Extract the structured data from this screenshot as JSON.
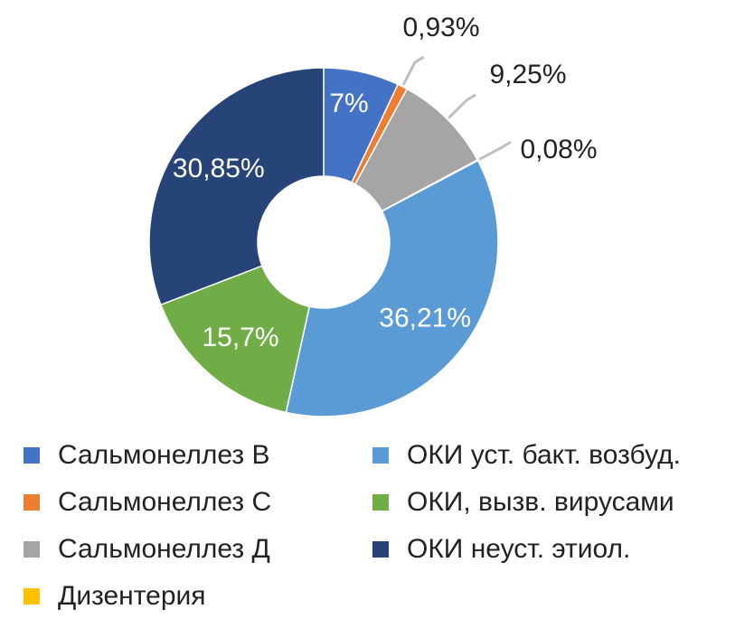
{
  "chart_data": {
    "type": "pie",
    "donut": true,
    "title": "",
    "categories": [
      "Сальмонеллез В",
      "Сальмонеллез С",
      "Сальмонеллез Д",
      "Дизентерия",
      "ОКИ уст. бакт. возбуд.",
      "ОКИ, вызв. вирусами",
      "ОКИ неуст. этиол."
    ],
    "values": [
      7,
      0.93,
      9.25,
      0.08,
      36.21,
      15.7,
      30.85
    ],
    "labels": [
      "7%",
      "0,93%",
      "9,25%",
      "0,08%",
      "36,21%",
      "15,7%",
      "30,85%"
    ],
    "colors": [
      "#4472c4",
      "#ed7d31",
      "#a5a5a5",
      "#ffc000",
      "#5b9bd5",
      "#70ad47",
      "#264478"
    ],
    "legend_position": "bottom"
  }
}
